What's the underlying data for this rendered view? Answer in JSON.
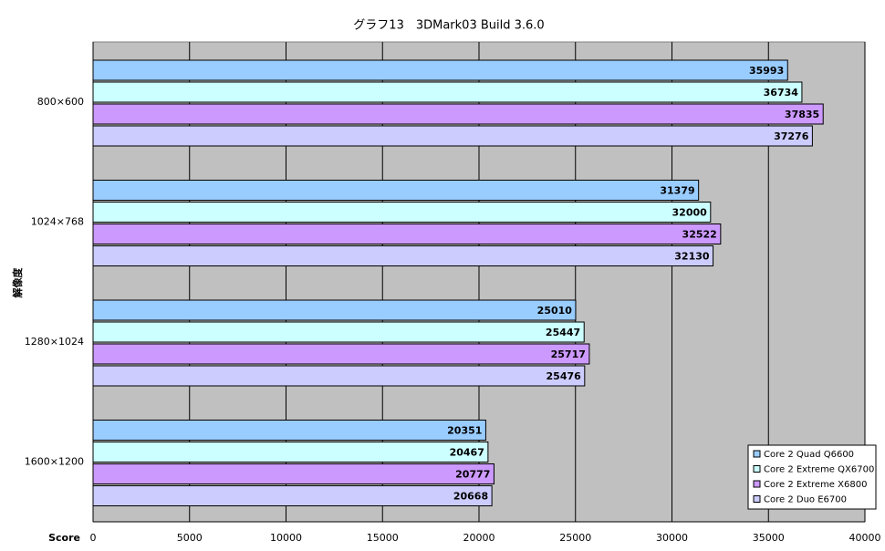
{
  "chart_data": {
    "type": "hbar",
    "title": "グラフ13　3DMark03 Build 3.6.0",
    "x_label": "Score",
    "y_label": "解像度",
    "categories": [
      "800×600",
      "1024×768",
      "1280×1024",
      "1600×1200"
    ],
    "series": [
      {
        "name": "Core 2 Quad Q6600",
        "color": "#99ccff",
        "values": [
          35993,
          31379,
          25010,
          20351
        ]
      },
      {
        "name": "Core 2 Extreme QX6700",
        "color": "#ccffff",
        "values": [
          36734,
          32000,
          25447,
          20467
        ]
      },
      {
        "name": "Core 2 Extreme X6800",
        "color": "#cc99ff",
        "values": [
          37835,
          32522,
          25717,
          20777
        ]
      },
      {
        "name": "Core 2 Duo E6700",
        "color": "#ccccff",
        "values": [
          37276,
          32130,
          25476,
          20668
        ]
      }
    ],
    "xlim": [
      0,
      40000
    ],
    "xticks": [
      0,
      5000,
      10000,
      15000,
      20000,
      25000,
      30000,
      35000,
      40000
    ],
    "grid": true,
    "legend": "lower right",
    "background": "#c0c0c0"
  }
}
